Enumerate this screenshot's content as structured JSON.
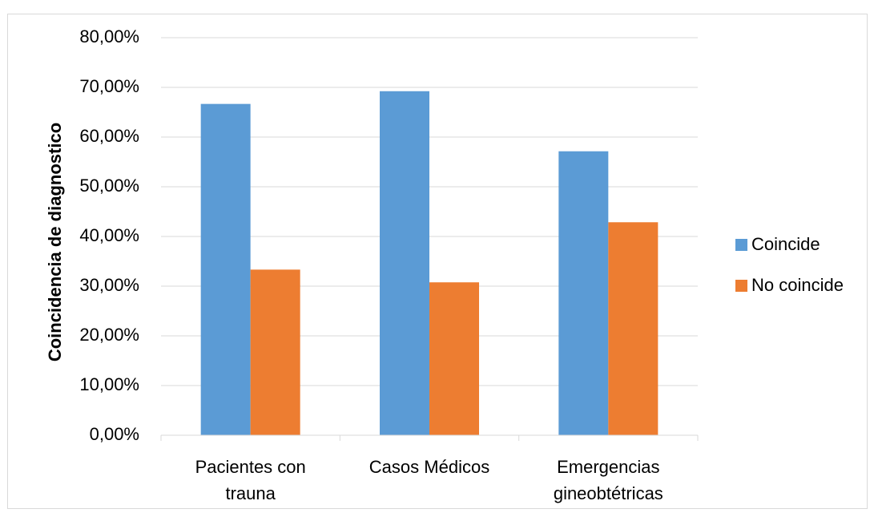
{
  "chart_data": {
    "type": "bar",
    "title": "",
    "xlabel": "",
    "ylabel": "Coincidencia de diagnostico",
    "categories": [
      [
        "Pacientes con",
        "trauna"
      ],
      [
        "Casos Médicos"
      ],
      [
        "Emergencias",
        "gineobtétricas"
      ]
    ],
    "series": [
      {
        "name": "Coincide",
        "color": "#5b9bd5",
        "values": [
          66.67,
          69.23,
          57.14
        ]
      },
      {
        "name": "No coincide",
        "color": "#ed7d31",
        "values": [
          33.33,
          30.77,
          42.86
        ]
      }
    ],
    "ylim": [
      0,
      80
    ],
    "yticks": [
      "0,00%",
      "10,00%",
      "20,00%",
      "30,00%",
      "40,00%",
      "50,00%",
      "60,00%",
      "70,00%",
      "80,00%"
    ],
    "grid": true,
    "legend_position": "right"
  }
}
